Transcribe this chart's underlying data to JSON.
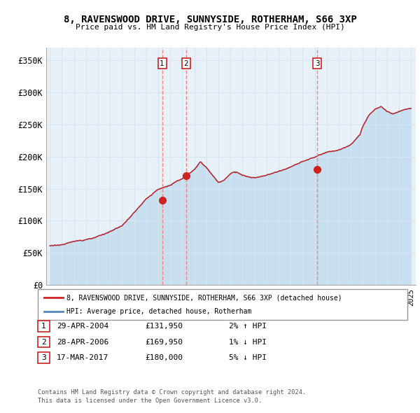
{
  "title": "8, RAVENSWOOD DRIVE, SUNNYSIDE, ROTHERHAM, S66 3XP",
  "subtitle": "Price paid vs. HM Land Registry's House Price Index (HPI)",
  "ylabel_ticks": [
    "£0",
    "£50K",
    "£100K",
    "£150K",
    "£200K",
    "£250K",
    "£300K",
    "£350K"
  ],
  "ytick_values": [
    0,
    50000,
    100000,
    150000,
    200000,
    250000,
    300000,
    350000
  ],
  "ylim": [
    0,
    370000
  ],
  "background_color": "#ffffff",
  "grid_color": "#d8e4f0",
  "plot_bg_color": "#e8f0f8",
  "sale_markers": [
    {
      "year": 2004.33,
      "price": 131950,
      "label": "1",
      "date": "29-APR-2004",
      "price_str": "£131,950",
      "pct": "2%",
      "arrow": "↑"
    },
    {
      "year": 2006.33,
      "price": 169950,
      "label": "2",
      "date": "28-APR-2006",
      "price_str": "£169,950",
      "pct": "1%",
      "arrow": "↓"
    },
    {
      "year": 2017.21,
      "price": 180000,
      "label": "3",
      "date": "17-MAR-2017",
      "price_str": "£180,000",
      "pct": "5%",
      "arrow": "↓"
    }
  ],
  "legend_line1": "8, RAVENSWOOD DRIVE, SUNNYSIDE, ROTHERHAM, S66 3XP (detached house)",
  "legend_line2": "HPI: Average price, detached house, Rotherham",
  "footer1": "Contains HM Land Registry data © Crown copyright and database right 2024.",
  "footer2": "This data is licensed under the Open Government Licence v3.0.",
  "red_color": "#cc2222",
  "blue_color": "#5588bb",
  "blue_fill": "#c8dff0",
  "dashed_color": "#ee8888"
}
